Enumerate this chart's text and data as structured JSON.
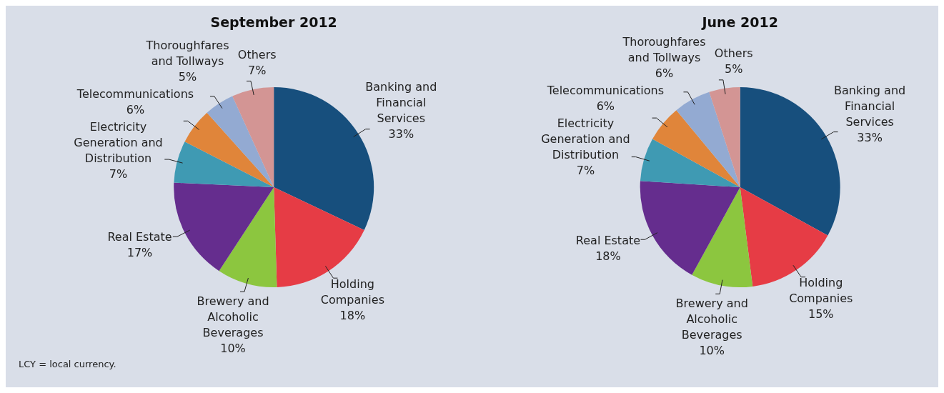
{
  "chart_data": [
    {
      "type": "pie",
      "title": "September 2012",
      "categories": [
        "Banking and Financial Services",
        "Holding Companies",
        "Brewery and Alcoholic Beverages",
        "Real Estate",
        "Electricity Generation and Distribution",
        "Telecommunications",
        "Thoroughfares and Tollways",
        "Others"
      ],
      "values": [
        33,
        18,
        10,
        17,
        7,
        6,
        5,
        7
      ],
      "colors": [
        "#174f7d",
        "#e63c45",
        "#8cc63f",
        "#652d8e",
        "#3f9ab3",
        "#e0853a",
        "#93aad2",
        "#d39594"
      ],
      "value_labels": [
        "33%",
        "18%",
        "10%",
        "17%",
        "7%",
        "6%",
        "5%",
        "7%"
      ],
      "annotations": [
        "LCY = local currency."
      ]
    },
    {
      "type": "pie",
      "title": "June 2012",
      "categories": [
        "Banking and Financial Services",
        "Holding Companies",
        "Brewery and Alcoholic Beverages",
        "Real Estate",
        "Electricity Generation and Distribution",
        "Telecommunications",
        "Thoroughfares and Tollways",
        "Others"
      ],
      "values": [
        33,
        15,
        10,
        18,
        7,
        6,
        6,
        5
      ],
      "colors": [
        "#174f7d",
        "#e63c45",
        "#8cc63f",
        "#652d8e",
        "#3f9ab3",
        "#e0853a",
        "#93aad2",
        "#d39594"
      ],
      "value_labels": [
        "33%",
        "15%",
        "10%",
        "18%",
        "7%",
        "6%",
        "6%",
        "5%"
      ]
    }
  ]
}
